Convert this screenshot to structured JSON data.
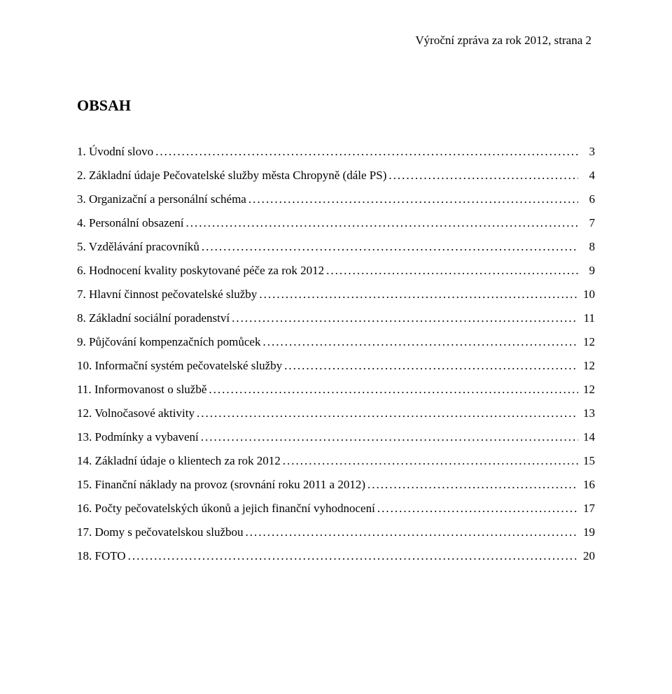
{
  "header": {
    "text": "Výroční zpráva za rok 2012,    strana 2"
  },
  "title": "OBSAH",
  "toc": [
    {
      "label": "1.  Úvodní slovo",
      "page": "3"
    },
    {
      "label": "2.  Základní údaje Pečovatelské služby města Chropyně (dále PS)",
      "page": "4"
    },
    {
      "label": "3.  Organizační a personální schéma",
      "page": "6"
    },
    {
      "label": "4.  Personální obsazení",
      "page": "7"
    },
    {
      "label": "5.  Vzdělávání pracovníků",
      "page": "8"
    },
    {
      "label": "6.  Hodnocení kvality poskytované péče za rok 2012",
      "page": "9"
    },
    {
      "label": "7.  Hlavní činnost pečovatelské služby",
      "page": "10"
    },
    {
      "label": "8.  Základní sociální poradenství",
      "page": "11"
    },
    {
      "label": "9.  Půjčování kompenzačních pomůcek",
      "page": "12"
    },
    {
      "label": "10. Informační systém pečovatelské služby",
      "page": "12"
    },
    {
      "label": "11. Informovanost o službě",
      "page": "12"
    },
    {
      "label": "12. Volnočasové aktivity",
      "page": "13"
    },
    {
      "label": "13. Podmínky a vybavení",
      "page": "14"
    },
    {
      "label": "14. Základní údaje o klientech za rok 2012",
      "page": "15"
    },
    {
      "label": "15. Finanční náklady na provoz  (srovnání roku 2011 a 2012)",
      "page": "16"
    },
    {
      "label": "16. Počty pečovatelských úkonů a jejich finanční vyhodnocení",
      "page": "17"
    },
    {
      "label": "17. Domy s pečovatelskou službou",
      "page": "19"
    },
    {
      "label": "18. FOTO",
      "page": "20"
    }
  ]
}
